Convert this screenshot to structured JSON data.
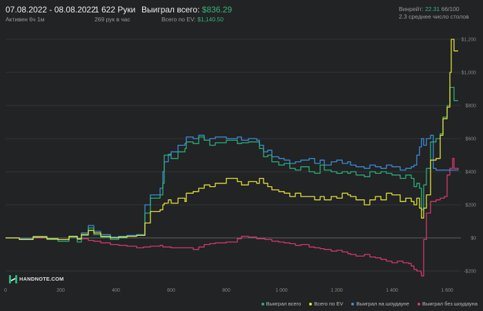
{
  "header": {
    "date_range": "07.08.2022 - 08.08.2022",
    "active": "Активен 6ч 1м",
    "hands": "1 622 Руки",
    "hands_per_hour": "269 рук в час",
    "won_label": "Выиграл всего:",
    "won_value": "$836.29",
    "ev_label": "Всего по EV:",
    "ev_value": "$1,140.50",
    "winrate_label": "Винрейт:",
    "winrate_value": "22.31",
    "winrate_extra": "66/100",
    "tables": "2.3 среднее число столов"
  },
  "logo": {
    "text": "HANDNOTE.COM",
    "accent": "2"
  },
  "colors": {
    "total": "#2bb37a",
    "ev": "#e8e43a",
    "showdown": "#3b8fe0",
    "nonshowdown": "#d9386e"
  },
  "chart_data": {
    "type": "line",
    "xlim": [
      0,
      1650
    ],
    "ylim": [
      -250,
      1250
    ],
    "x_ticks": [
      0,
      200,
      400,
      600,
      800,
      1000,
      1200,
      1400,
      1600
    ],
    "x_tick_labels": [
      "0",
      "200",
      "400",
      "600",
      "800",
      "1 000",
      "1 200",
      "1 400",
      "1 600"
    ],
    "y_ticks": [
      -200,
      0,
      200,
      400,
      600,
      800,
      1000,
      1200
    ],
    "y_tick_labels": [
      "-$200",
      "$0",
      "$200",
      "$400",
      "$600",
      "$800",
      "$1,000",
      "$1,200"
    ],
    "grid": true,
    "legend": "bottom-right",
    "series": [
      {
        "name": "Выиграл всего",
        "key": "total",
        "points": [
          [
            0,
            0
          ],
          [
            50,
            -10
          ],
          [
            100,
            10
          ],
          [
            150,
            -10
          ],
          [
            190,
            -20
          ],
          [
            230,
            5
          ],
          [
            260,
            -25
          ],
          [
            275,
            15
          ],
          [
            300,
            60
          ],
          [
            320,
            20
          ],
          [
            345,
            5
          ],
          [
            380,
            -10
          ],
          [
            410,
            0
          ],
          [
            440,
            10
          ],
          [
            475,
            15
          ],
          [
            500,
            15
          ],
          [
            505,
            150
          ],
          [
            525,
            240
          ],
          [
            560,
            260
          ],
          [
            570,
            330
          ],
          [
            575,
            500
          ],
          [
            590,
            505
          ],
          [
            600,
            480
          ],
          [
            625,
            520
          ],
          [
            650,
            540
          ],
          [
            655,
            580
          ],
          [
            680,
            570
          ],
          [
            700,
            610
          ],
          [
            720,
            590
          ],
          [
            740,
            560
          ],
          [
            760,
            575
          ],
          [
            800,
            590
          ],
          [
            840,
            570
          ],
          [
            855,
            575
          ],
          [
            880,
            580
          ],
          [
            910,
            580
          ],
          [
            920,
            540
          ],
          [
            935,
            490
          ],
          [
            950,
            500
          ],
          [
            965,
            460
          ],
          [
            990,
            440
          ],
          [
            1010,
            450
          ],
          [
            1030,
            420
          ],
          [
            1050,
            410
          ],
          [
            1070,
            430
          ],
          [
            1100,
            400
          ],
          [
            1120,
            390
          ],
          [
            1140,
            440
          ],
          [
            1155,
            410
          ],
          [
            1180,
            400
          ],
          [
            1200,
            390
          ],
          [
            1220,
            400
          ],
          [
            1240,
            390
          ],
          [
            1250,
            400
          ],
          [
            1270,
            380
          ],
          [
            1300,
            370
          ],
          [
            1320,
            400
          ],
          [
            1340,
            390
          ],
          [
            1360,
            400
          ],
          [
            1380,
            390
          ],
          [
            1400,
            380
          ],
          [
            1430,
            360
          ],
          [
            1450,
            380
          ],
          [
            1470,
            360
          ],
          [
            1480,
            310
          ],
          [
            1490,
            330
          ],
          [
            1500,
            300
          ],
          [
            1507,
            170
          ],
          [
            1515,
            320
          ],
          [
            1525,
            420
          ],
          [
            1540,
            580
          ],
          [
            1560,
            600
          ],
          [
            1575,
            630
          ],
          [
            1585,
            730
          ],
          [
            1600,
            800
          ],
          [
            1610,
            910
          ],
          [
            1625,
            830
          ],
          [
            1640,
            830
          ]
        ]
      },
      {
        "name": "Всего по EV",
        "key": "ev",
        "points": [
          [
            0,
            0
          ],
          [
            50,
            -10
          ],
          [
            100,
            5
          ],
          [
            150,
            -5
          ],
          [
            190,
            -10
          ],
          [
            230,
            10
          ],
          [
            260,
            -5
          ],
          [
            275,
            20
          ],
          [
            300,
            45
          ],
          [
            320,
            30
          ],
          [
            345,
            10
          ],
          [
            380,
            0
          ],
          [
            410,
            5
          ],
          [
            440,
            10
          ],
          [
            475,
            15
          ],
          [
            500,
            15
          ],
          [
            505,
            90
          ],
          [
            525,
            160
          ],
          [
            560,
            170
          ],
          [
            570,
            200
          ],
          [
            575,
            210
          ],
          [
            590,
            230
          ],
          [
            600,
            210
          ],
          [
            625,
            240
          ],
          [
            650,
            220
          ],
          [
            655,
            270
          ],
          [
            680,
            280
          ],
          [
            700,
            300
          ],
          [
            720,
            320
          ],
          [
            740,
            310
          ],
          [
            760,
            330
          ],
          [
            800,
            360
          ],
          [
            840,
            340
          ],
          [
            855,
            320
          ],
          [
            880,
            340
          ],
          [
            910,
            330
          ],
          [
            920,
            360
          ],
          [
            935,
            330
          ],
          [
            950,
            310
          ],
          [
            965,
            290
          ],
          [
            990,
            280
          ],
          [
            1010,
            270
          ],
          [
            1030,
            250
          ],
          [
            1050,
            270
          ],
          [
            1070,
            250
          ],
          [
            1100,
            250
          ],
          [
            1120,
            230
          ],
          [
            1140,
            250
          ],
          [
            1155,
            230
          ],
          [
            1180,
            250
          ],
          [
            1200,
            240
          ],
          [
            1220,
            270
          ],
          [
            1240,
            260
          ],
          [
            1250,
            250
          ],
          [
            1270,
            230
          ],
          [
            1300,
            200
          ],
          [
            1320,
            230
          ],
          [
            1340,
            250
          ],
          [
            1360,
            230
          ],
          [
            1380,
            270
          ],
          [
            1400,
            260
          ],
          [
            1430,
            220
          ],
          [
            1450,
            240
          ],
          [
            1470,
            220
          ],
          [
            1480,
            200
          ],
          [
            1490,
            240
          ],
          [
            1500,
            180
          ],
          [
            1507,
            120
          ],
          [
            1515,
            180
          ],
          [
            1525,
            260
          ],
          [
            1540,
            470
          ],
          [
            1560,
            480
          ],
          [
            1575,
            620
          ],
          [
            1585,
            720
          ],
          [
            1600,
            790
          ],
          [
            1610,
            1000
          ],
          [
            1615,
            1200
          ],
          [
            1625,
            1130
          ],
          [
            1640,
            1130
          ]
        ]
      },
      {
        "name": "Выиграл на шоудауне",
        "key": "showdown",
        "points": [
          [
            0,
            0
          ],
          [
            50,
            -5
          ],
          [
            100,
            10
          ],
          [
            150,
            -5
          ],
          [
            190,
            -10
          ],
          [
            230,
            10
          ],
          [
            260,
            -10
          ],
          [
            275,
            30
          ],
          [
            300,
            75
          ],
          [
            320,
            40
          ],
          [
            345,
            20
          ],
          [
            380,
            5
          ],
          [
            410,
            10
          ],
          [
            440,
            15
          ],
          [
            475,
            20
          ],
          [
            500,
            20
          ],
          [
            505,
            200
          ],
          [
            525,
            260
          ],
          [
            560,
            300
          ],
          [
            570,
            400
          ],
          [
            575,
            460
          ],
          [
            590,
            500
          ],
          [
            600,
            520
          ],
          [
            625,
            560
          ],
          [
            650,
            570
          ],
          [
            655,
            610
          ],
          [
            680,
            600
          ],
          [
            700,
            620
          ],
          [
            720,
            590
          ],
          [
            740,
            600
          ],
          [
            760,
            610
          ],
          [
            800,
            600
          ],
          [
            840,
            610
          ],
          [
            855,
            590
          ],
          [
            880,
            600
          ],
          [
            910,
            590
          ],
          [
            920,
            560
          ],
          [
            935,
            520
          ],
          [
            950,
            530
          ],
          [
            965,
            490
          ],
          [
            990,
            480
          ],
          [
            1010,
            470
          ],
          [
            1030,
            450
          ],
          [
            1050,
            460
          ],
          [
            1070,
            470
          ],
          [
            1100,
            480
          ],
          [
            1120,
            450
          ],
          [
            1140,
            470
          ],
          [
            1155,
            440
          ],
          [
            1180,
            460
          ],
          [
            1200,
            470
          ],
          [
            1220,
            450
          ],
          [
            1240,
            460
          ],
          [
            1250,
            440
          ],
          [
            1270,
            430
          ],
          [
            1300,
            420
          ],
          [
            1320,
            440
          ],
          [
            1340,
            430
          ],
          [
            1360,
            420
          ],
          [
            1380,
            440
          ],
          [
            1400,
            430
          ],
          [
            1430,
            410
          ],
          [
            1450,
            420
          ],
          [
            1470,
            430
          ],
          [
            1480,
            440
          ],
          [
            1490,
            500
          ],
          [
            1500,
            550
          ],
          [
            1507,
            600
          ],
          [
            1515,
            560
          ],
          [
            1525,
            600
          ],
          [
            1540,
            620
          ],
          [
            1550,
            420
          ],
          [
            1560,
            410
          ],
          [
            1600,
            410
          ],
          [
            1625,
            410
          ],
          [
            1640,
            410
          ]
        ]
      },
      {
        "name": "Выиграл без шоудауна",
        "key": "nonshowdown",
        "points": [
          [
            0,
            0
          ],
          [
            50,
            -5
          ],
          [
            100,
            0
          ],
          [
            150,
            -5
          ],
          [
            190,
            -10
          ],
          [
            230,
            5
          ],
          [
            260,
            -10
          ],
          [
            275,
            -5
          ],
          [
            300,
            -15
          ],
          [
            320,
            -20
          ],
          [
            345,
            -30
          ],
          [
            380,
            -40
          ],
          [
            410,
            -45
          ],
          [
            440,
            -50
          ],
          [
            475,
            -60
          ],
          [
            500,
            -55
          ],
          [
            525,
            -50
          ],
          [
            560,
            -45
          ],
          [
            570,
            -55
          ],
          [
            600,
            -60
          ],
          [
            650,
            -60
          ],
          [
            680,
            -70
          ],
          [
            700,
            -55
          ],
          [
            720,
            -40
          ],
          [
            740,
            -35
          ],
          [
            760,
            -30
          ],
          [
            800,
            -25
          ],
          [
            840,
            -5
          ],
          [
            855,
            10
          ],
          [
            880,
            5
          ],
          [
            910,
            -5
          ],
          [
            940,
            -10
          ],
          [
            965,
            -20
          ],
          [
            990,
            -25
          ],
          [
            1010,
            -30
          ],
          [
            1030,
            -35
          ],
          [
            1050,
            -45
          ],
          [
            1070,
            -40
          ],
          [
            1100,
            -55
          ],
          [
            1120,
            -60
          ],
          [
            1140,
            -65
          ],
          [
            1155,
            -70
          ],
          [
            1180,
            -80
          ],
          [
            1200,
            -75
          ],
          [
            1220,
            -85
          ],
          [
            1240,
            -95
          ],
          [
            1250,
            -100
          ],
          [
            1270,
            -110
          ],
          [
            1300,
            -100
          ],
          [
            1320,
            -115
          ],
          [
            1340,
            -120
          ],
          [
            1360,
            -130
          ],
          [
            1380,
            -140
          ],
          [
            1400,
            -150
          ],
          [
            1420,
            -140
          ],
          [
            1440,
            -150
          ],
          [
            1460,
            -155
          ],
          [
            1470,
            -170
          ],
          [
            1480,
            -190
          ],
          [
            1490,
            -200
          ],
          [
            1500,
            -200
          ],
          [
            1505,
            -210
          ],
          [
            1507,
            -230
          ],
          [
            1515,
            -10
          ],
          [
            1525,
            150
          ],
          [
            1540,
            220
          ],
          [
            1560,
            230
          ],
          [
            1575,
            240
          ],
          [
            1590,
            250
          ],
          [
            1600,
            380
          ],
          [
            1610,
            420
          ],
          [
            1620,
            480
          ],
          [
            1625,
            420
          ],
          [
            1640,
            410
          ]
        ]
      }
    ]
  }
}
